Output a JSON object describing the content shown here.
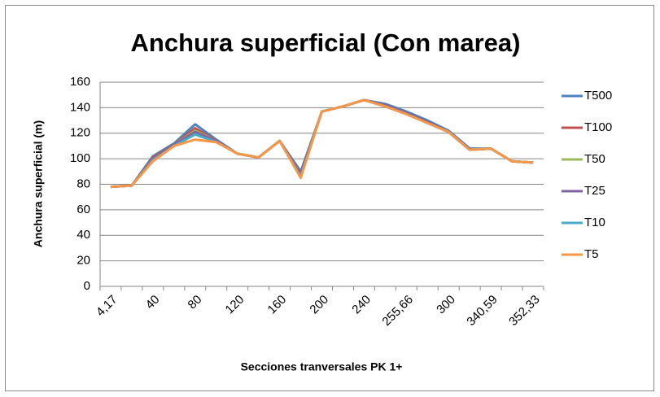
{
  "chart_data": {
    "type": "line",
    "title": "Anchura superficial (Con marea)",
    "y_label": "Anchura superficial (m)",
    "x_label": "Secciones tranversales PK 1+",
    "categories": [
      "4,17",
      null,
      "40",
      null,
      "80",
      null,
      "120",
      null,
      "160",
      null,
      "200",
      null,
      "240",
      null,
      "255,66",
      null,
      "300",
      null,
      "340,59",
      null,
      "352,33"
    ],
    "series": [
      {
        "name": "T500",
        "color": "#4f81bd",
        "values": [
          78,
          79,
          102,
          112,
          127,
          115,
          104,
          101,
          114,
          90,
          137,
          141,
          146,
          143,
          137,
          130,
          122,
          108,
          108,
          98,
          97
        ]
      },
      {
        "name": "T100",
        "color": "#c0504d",
        "values": [
          78,
          79,
          101,
          111,
          124,
          114,
          104,
          101,
          114,
          88,
          137,
          141,
          146,
          142,
          136,
          129,
          121,
          107,
          108,
          98,
          97
        ]
      },
      {
        "name": "T50",
        "color": "#9bbb59",
        "values": [
          78,
          79,
          100,
          111,
          122,
          114,
          104,
          101,
          114,
          87,
          137,
          141,
          146,
          142,
          136,
          129,
          121,
          107,
          108,
          98,
          97
        ]
      },
      {
        "name": "T25",
        "color": "#8064a2",
        "values": [
          78,
          79,
          100,
          111,
          121,
          114,
          104,
          101,
          114,
          87,
          137,
          141,
          146,
          142,
          136,
          129,
          121,
          107,
          108,
          98,
          97
        ]
      },
      {
        "name": "T10",
        "color": "#4bacc6",
        "values": [
          78,
          79,
          99,
          110,
          119,
          113,
          104,
          101,
          114,
          86,
          137,
          141,
          146,
          141,
          135,
          128,
          121,
          107,
          108,
          98,
          97
        ]
      },
      {
        "name": "T5",
        "color": "#f79646",
        "values": [
          78,
          79,
          98,
          110,
          115,
          113,
          104,
          101,
          114,
          85,
          137,
          141,
          146,
          141,
          135,
          128,
          121,
          107,
          108,
          98,
          97
        ]
      }
    ],
    "ylim": [
      0,
      160
    ],
    "yticks": [
      0,
      20,
      40,
      60,
      80,
      100,
      120,
      140,
      160
    ],
    "grid": true,
    "legend": "right"
  }
}
